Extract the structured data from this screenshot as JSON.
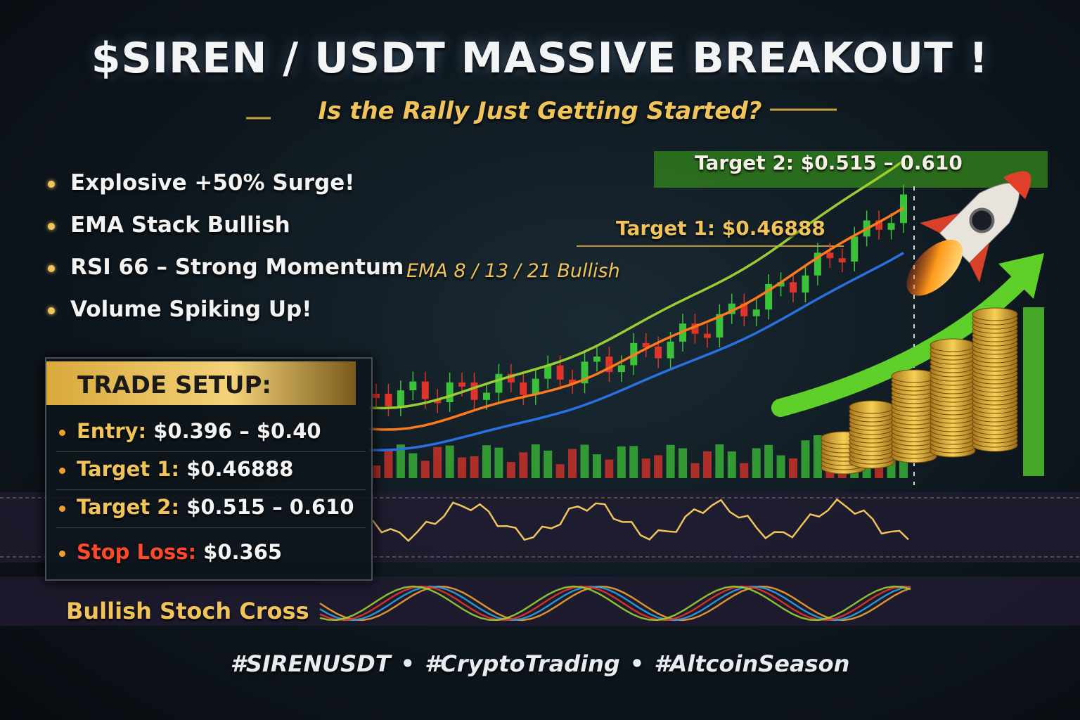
{
  "header": {
    "title": "$SIREN / USDT MASSIVE BREAKOUT !",
    "subtitle": "Is the Rally Just Getting Started?"
  },
  "highlights": [
    "Explosive +50% Surge!",
    "EMA Stack Bullish",
    "RSI 66 – Strong Momentum",
    "Volume Spiking Up!"
  ],
  "chart_labels": {
    "target_2": "Target 2: $0.515 – 0.610",
    "target_1": "Target 1: $0.46888",
    "ema": "EMA 8 / 13 / 21 Bullish",
    "stoch": "Bullish Stoch Cross"
  },
  "trade_setup": {
    "title": "TRADE SETUP:",
    "items": [
      {
        "label": "Entry:",
        "value": "$0.396 – $0.40"
      },
      {
        "label": "Target 1:",
        "value": "$0.46888"
      },
      {
        "label": "Target 2:",
        "value": "$0.515 – 0.610"
      },
      {
        "label": "Stop Loss:",
        "value": "$0.365"
      }
    ]
  },
  "hashtags": [
    "#SIRENUSDT",
    "#CryptoTrading",
    "#AltcoinSeason"
  ]
}
